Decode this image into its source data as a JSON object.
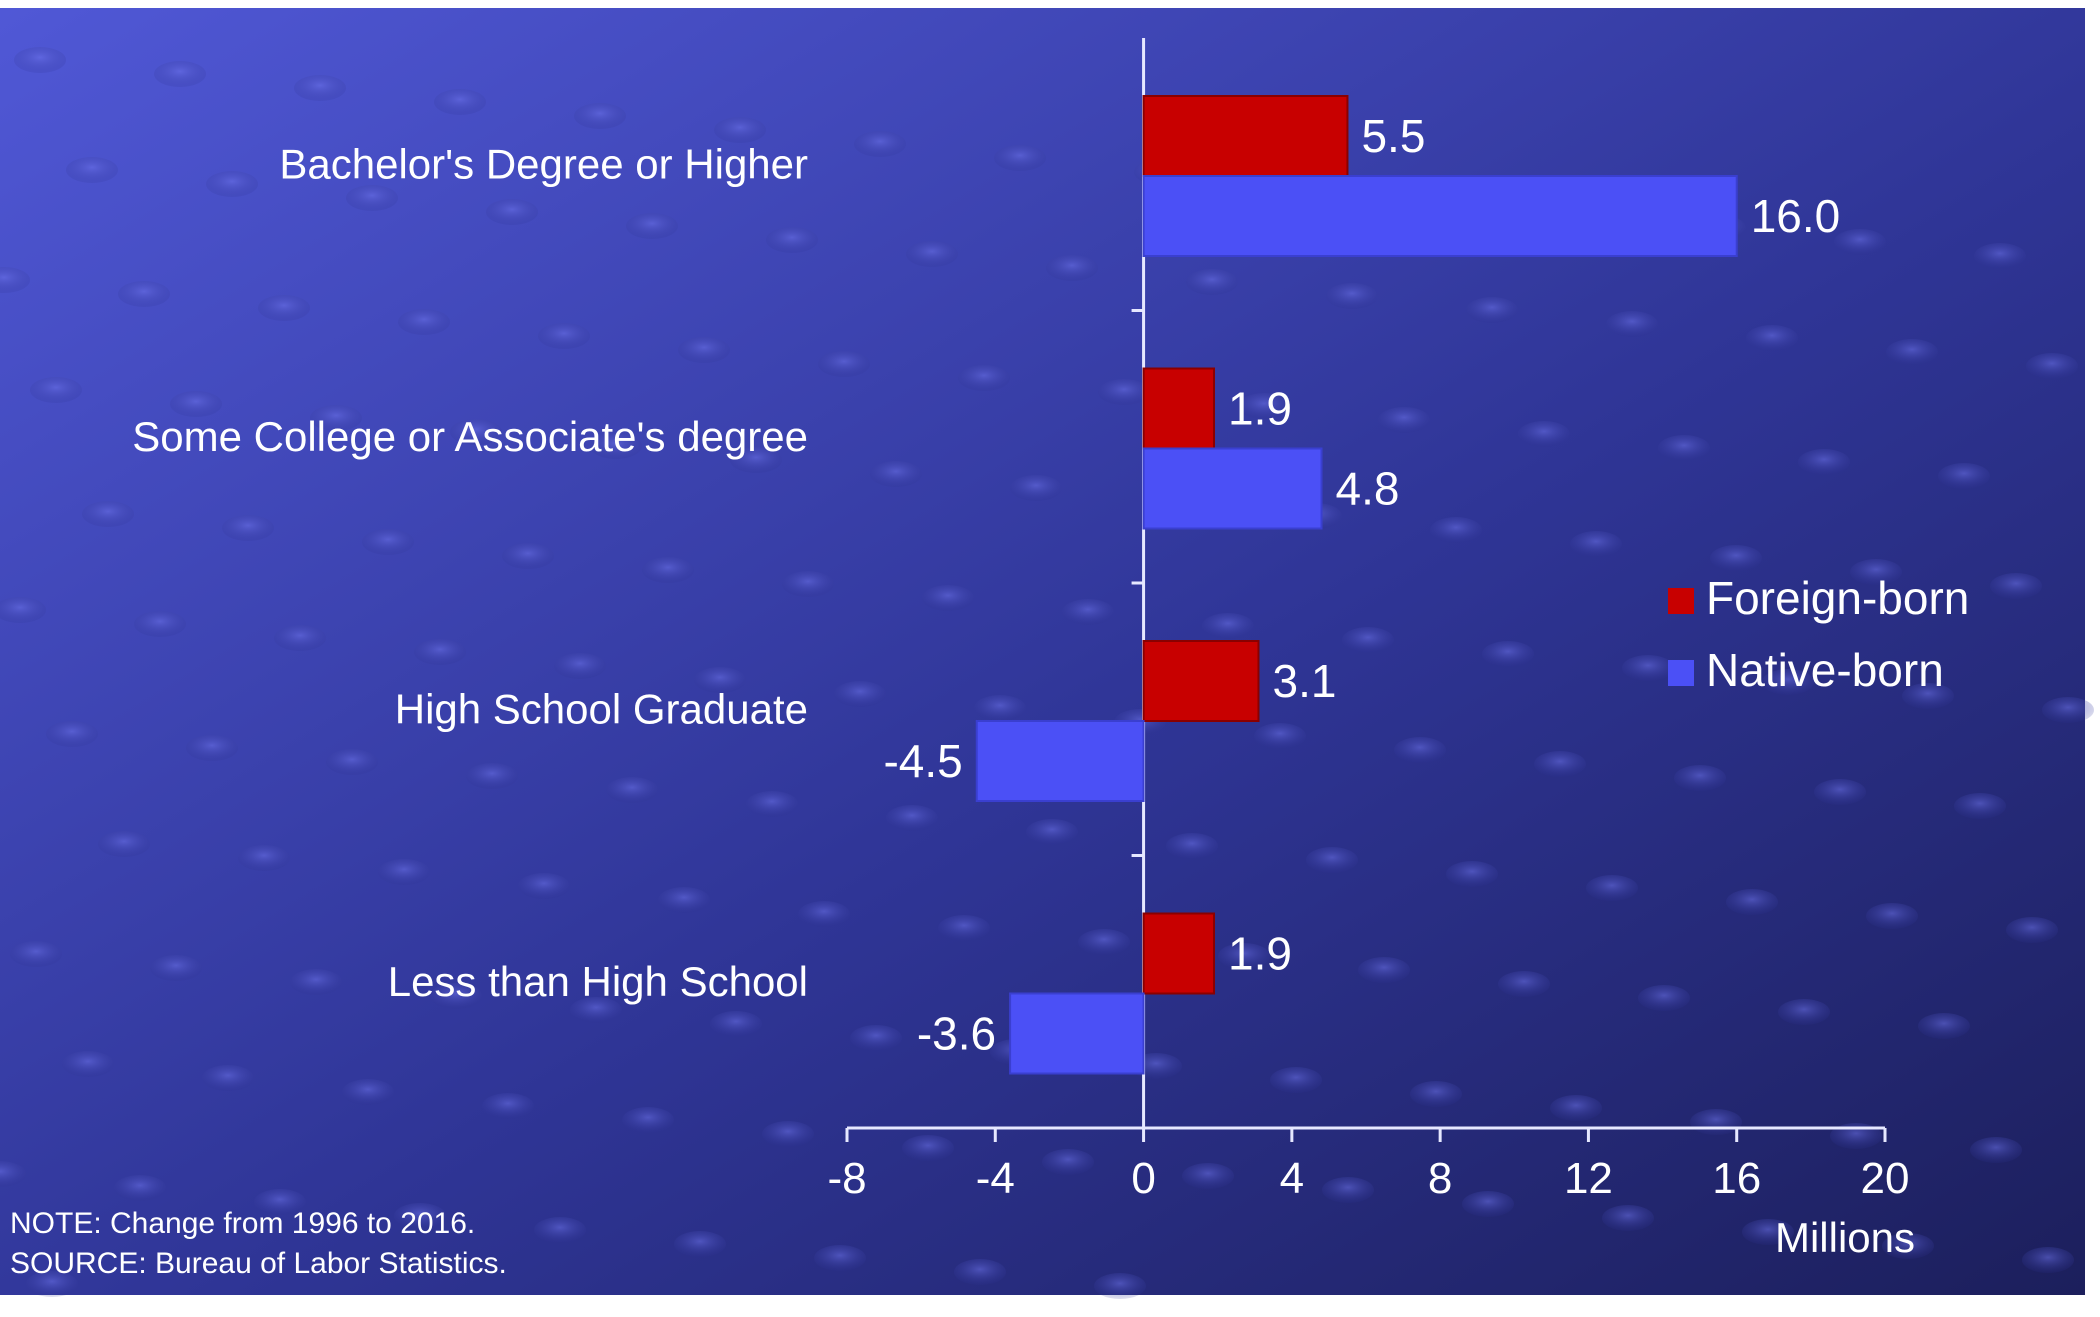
{
  "chart_data": {
    "type": "bar",
    "orientation": "horizontal",
    "categories": [
      "Bachelor's Degree or Higher",
      "Some College or Associate's degree",
      "High School Graduate",
      "Less than High School"
    ],
    "series": [
      {
        "name": "Foreign-born",
        "color": "#c80000",
        "values": [
          5.5,
          1.9,
          3.1,
          1.9
        ]
      },
      {
        "name": "Native-born",
        "color": "#4b50f6",
        "values": [
          16.0,
          4.8,
          -4.5,
          -3.6
        ]
      }
    ],
    "value_labels": [
      [
        "5.5",
        "1.9",
        "3.1",
        "1.9"
      ],
      [
        "16.0",
        "4.8",
        "-4.5",
        "-3.6"
      ]
    ],
    "x_ticks": [
      -8,
      -4,
      0,
      4,
      8,
      12,
      16,
      20
    ],
    "x_tick_labels": [
      "-8",
      "-4",
      "0",
      "4",
      "8",
      "12",
      "16",
      "20"
    ],
    "xlabel": "Millions",
    "xlim": [
      -8,
      20
    ],
    "legend_position": "right",
    "grid": false
  },
  "notes": {
    "note": "NOTE: Change from 1996 to 2016.",
    "source": "SOURCE: Bureau of Labor Statistics."
  },
  "colors": {
    "background_light": "#5058d6",
    "background_dark": "#1c1f5c",
    "axis": "#e6e8ff",
    "text": "#ffffff"
  }
}
